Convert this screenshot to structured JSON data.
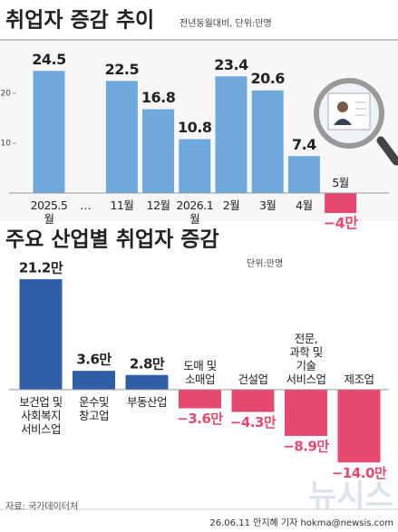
{
  "chart_data": [
    {
      "type": "bar",
      "title": "취업자 증감 추이",
      "subtitle": "전년동월대비, 단위:만명",
      "categories": [
        "2025.5월",
        "…",
        "11월",
        "12월",
        "2026.1월",
        "2월",
        "3월",
        "4월",
        "5월"
      ],
      "values": [
        24.5,
        null,
        22.5,
        16.8,
        10.8,
        23.4,
        20.6,
        7.4,
        -4
      ],
      "value_labels": [
        "24.5",
        null,
        "22.5",
        "16.8",
        "10.8",
        "23.4",
        "20.6",
        "7.4",
        "−4만"
      ],
      "color": "#6fa8dc",
      "negative_color": "#e5496f",
      "ylim": [
        -5,
        30
      ],
      "yticks": [
        10,
        20
      ]
    },
    {
      "type": "bar",
      "title": "주요 산업별 취업자 증감",
      "subtitle": "단위:만명",
      "categories": [
        "보건업 및\n사회복지\n서비스업",
        "운수및\n창고업",
        "부동산업",
        "도매 및\n소매업",
        "건설업",
        "전문,\n과학 및\n기술\n서비스업",
        "제조업"
      ],
      "values": [
        21.2,
        3.6,
        2.8,
        -3.6,
        -4.3,
        -8.9,
        -14.0
      ],
      "value_labels": [
        "21.2만",
        "3.6만",
        "2.8만",
        "−3.6만",
        "−4.3만",
        "−8.9만",
        "−14.0만"
      ],
      "color": "#2f5ea6",
      "negative_color": "#e5496f",
      "ylim": [
        -15,
        22
      ]
    }
  ],
  "footer": {
    "source": "자료: 국가데이터처",
    "credit": "26.06.11 안지혜 기자 hokma@newsis.com",
    "logo": "뉴시스"
  }
}
